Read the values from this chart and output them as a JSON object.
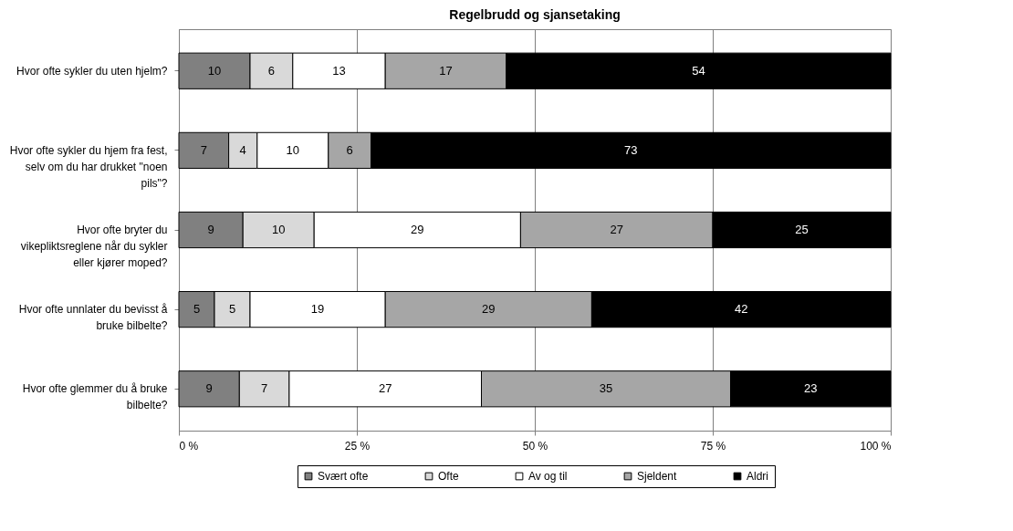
{
  "chart_data": {
    "type": "bar",
    "orientation": "horizontal",
    "stacked": true,
    "title": "Regelbrudd og sjansetaking",
    "categories": [
      "Hvor ofte sykler du uten hjelm?",
      "Hvor ofte sykler du hjem fra fest, selv om du har drukket \"noen pils\"?",
      "Hvor ofte bryter du vikepliktsreglene når du sykler eller kjører moped?",
      "Hvor ofte unnlater du bevisst å bruke bilbelte?",
      "Hvor ofte glemmer du å bruke bilbelte?"
    ],
    "series": [
      {
        "name": "Svært ofte",
        "color": "#808080",
        "values": [
          10,
          7,
          9,
          5,
          8.5
        ],
        "value_labels": [
          "10",
          "7",
          "9",
          "5",
          "9"
        ]
      },
      {
        "name": "Ofte",
        "color": "#d9d9d9",
        "values": [
          6,
          4,
          10,
          5,
          7
        ]
      },
      {
        "name": "Av og til",
        "color": "#ffffff",
        "values": [
          13,
          10,
          29,
          19,
          27
        ]
      },
      {
        "name": "Sjeldent",
        "color": "#a6a6a6",
        "values": [
          17,
          6,
          27,
          29,
          35
        ]
      },
      {
        "name": "Aldri",
        "color": "#000000",
        "values": [
          54,
          73,
          25,
          42,
          22.5
        ],
        "value_labels": [
          "54",
          "73",
          "25",
          "42",
          "23"
        ]
      }
    ],
    "data_labels": true,
    "xlim": [
      0,
      100
    ],
    "xticks": [
      {
        "value": 0,
        "label": "0 %"
      },
      {
        "value": 25,
        "label": "25 %"
      },
      {
        "value": 50,
        "label": "50 %"
      },
      {
        "value": 75,
        "label": "75 %"
      },
      {
        "value": 100,
        "label": "100 %"
      }
    ],
    "grid": "x",
    "legend": "bottom"
  }
}
